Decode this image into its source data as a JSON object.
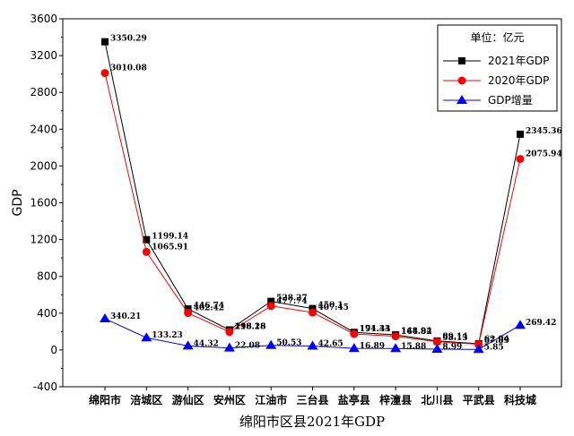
{
  "chart_data": {
    "type": "line",
    "title": "绵阳市区县2021年GDP",
    "ylabel": "GDP",
    "xlabel": "",
    "ylim": [
      -400,
      3600
    ],
    "yticks": [
      -400,
      0,
      400,
      800,
      1200,
      1600,
      2000,
      2400,
      2800,
      3200,
      3600
    ],
    "grid": false,
    "legend_position": "top-right",
    "legend_title": "单位：亿元",
    "categories": [
      "绵阳市",
      "涪城区",
      "游仙区",
      "安州区",
      "江油市",
      "三台县",
      "盐亭县",
      "梓潼县",
      "北川县",
      "平武县",
      "科技城"
    ],
    "series": [
      {
        "name": "2021年GDP",
        "color": "#000000",
        "marker": "square",
        "values": [
          3350.29,
          1199.14,
          446.74,
          218.26,
          528.27,
          450.1,
          191.33,
          164.82,
          98.13,
          67.89,
          2345.36
        ],
        "labels": [
          "3350.29",
          "1199.14",
          "446.74",
          "218.26",
          "528.27",
          "450.1",
          "191.33",
          "164.82",
          "98.13",
          "67.89",
          "2345.36"
        ]
      },
      {
        "name": "2020年GDP",
        "color": "#ff0000",
        "marker": "circle",
        "values": [
          3010.08,
          1065.91,
          402.42,
          196.18,
          477.74,
          407.45,
          174.44,
          148.94,
          89.14,
          62.04,
          2075.94
        ],
        "labels": [
          "3010.08",
          "1065.91",
          "402.42",
          "196.18",
          "477.74",
          "407.45",
          "174.44",
          "148.94",
          "89.14",
          "62.04",
          "2075.94"
        ]
      },
      {
        "name": "GDP增量",
        "color": "#0000ff",
        "marker": "triangle",
        "values": [
          340.21,
          133.23,
          44.32,
          22.08,
          50.53,
          42.65,
          16.89,
          15.88,
          8.99,
          5.85,
          269.42
        ],
        "labels": [
          "340.21",
          "133.23",
          "44.32",
          "22.08",
          "50.53",
          "42.65",
          "16.89",
          "15.88",
          "8.99",
          "5.85",
          "269.42"
        ]
      }
    ]
  }
}
